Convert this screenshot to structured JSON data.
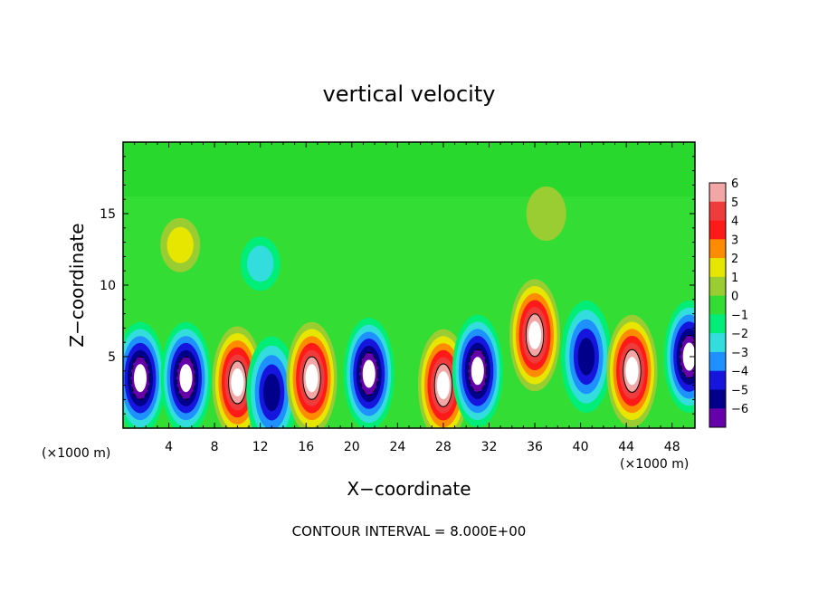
{
  "chart_data": {
    "type": "heatmap",
    "title": "vertical velocity",
    "xlabel": "X−coordinate",
    "ylabel": "Z−coordinate",
    "x_unit_left": "(×1000 m)",
    "x_unit_right": "(×1000 m)",
    "xlim": [
      0,
      50
    ],
    "ylim": [
      0,
      20
    ],
    "x_ticks": [
      4,
      8,
      12,
      16,
      20,
      24,
      28,
      32,
      36,
      40,
      44,
      48
    ],
    "x_tick_labels": [
      "4",
      "8",
      "12",
      "16",
      "20",
      "24",
      "28",
      "32",
      "36",
      "40",
      "44",
      "48"
    ],
    "y_ticks": [
      5,
      10,
      15
    ],
    "y_tick_labels": [
      "5",
      "10",
      "15"
    ],
    "colorbar": {
      "levels": [
        6,
        5,
        4,
        3,
        2,
        1,
        0,
        -1,
        -2,
        -3,
        -4,
        -5,
        -6
      ],
      "labels": [
        "6",
        "5",
        "4",
        "3",
        "2",
        "1",
        "0",
        "−1",
        "−2",
        "−3",
        "−4",
        "−5",
        "−6"
      ],
      "colors": [
        "#f2a6a6",
        "#ee3b3b",
        "#ff1a1a",
        "#ff8c00",
        "#e6e600",
        "#9acd32",
        "#33dd33",
        "#00ee77",
        "#33dddd",
        "#1e90ff",
        "#1515dd",
        "#00008b",
        "#6600aa"
      ]
    },
    "cells": [
      {
        "x": 1.5,
        "z": 3.5,
        "w": -7
      },
      {
        "x": 5.5,
        "z": 3.5,
        "w": -7
      },
      {
        "x": 10.0,
        "z": 3.2,
        "w": 7
      },
      {
        "x": 13.0,
        "z": 2.5,
        "w": -5
      },
      {
        "x": 16.5,
        "z": 3.5,
        "w": 7
      },
      {
        "x": 21.5,
        "z": 3.8,
        "w": -7
      },
      {
        "x": 28.0,
        "z": 3.0,
        "w": 7
      },
      {
        "x": 31.0,
        "z": 4.0,
        "w": -7
      },
      {
        "x": 36.0,
        "z": 6.5,
        "w": 7
      },
      {
        "x": 40.5,
        "z": 5.0,
        "w": -5
      },
      {
        "x": 44.5,
        "z": 4.0,
        "w": 7
      },
      {
        "x": 49.5,
        "z": 5.0,
        "w": -7
      },
      {
        "x": 5.0,
        "z": 12.8,
        "w": 2
      },
      {
        "x": 12.0,
        "z": 11.5,
        "w": -2
      },
      {
        "x": 37.0,
        "z": 15.0,
        "w": 1
      }
    ],
    "footnote": "CONTOUR INTERVAL = 8.000E+00"
  }
}
